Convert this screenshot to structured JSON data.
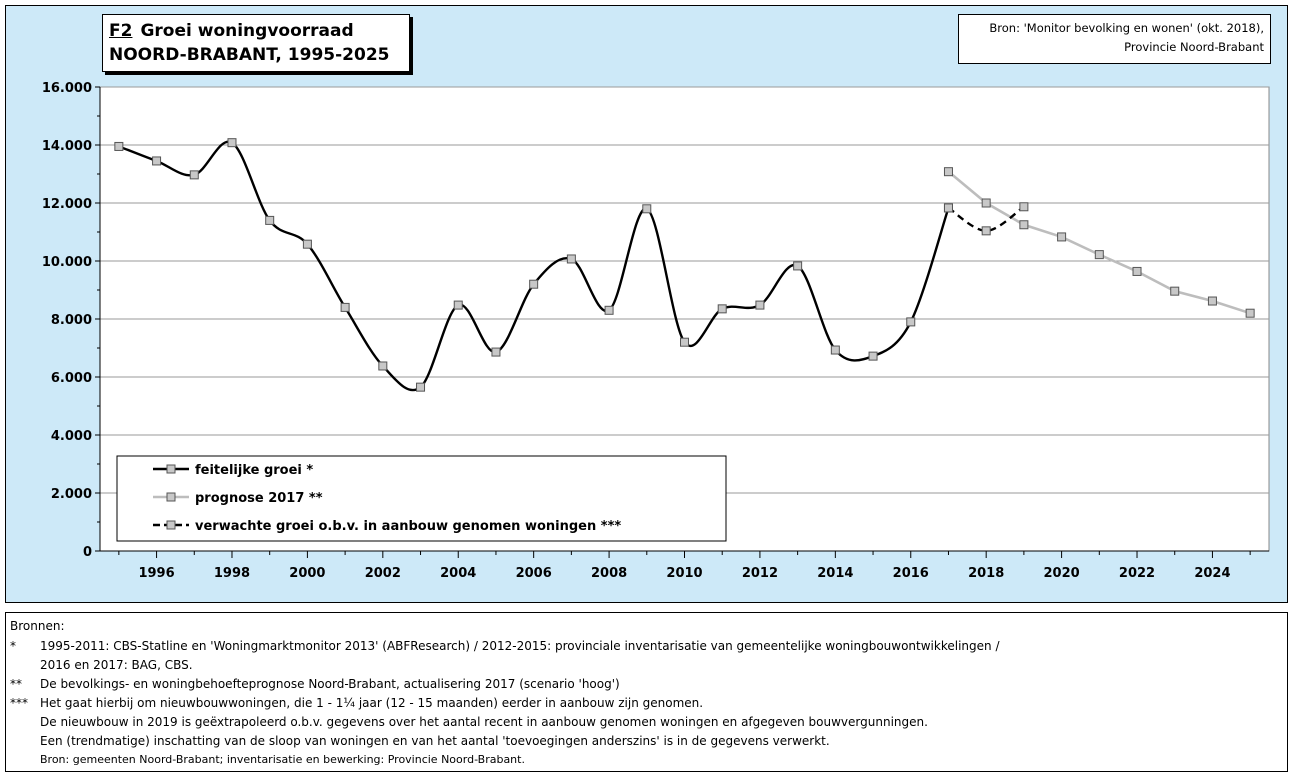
{
  "title": {
    "code": "F2",
    "line1": "Groei woningvoorraad",
    "line2": "NOORD-BRABANT, 1995-2025"
  },
  "source": {
    "line1": "Bron: 'Monitor bevolking en wonen' (okt. 2018),",
    "line2": "Provincie Noord-Brabant"
  },
  "colors": {
    "panel_background": "#cde9f8",
    "plot_background": "#ffffff",
    "actual": "#000000",
    "forecast": "#bdbdbd",
    "expected": "#000000",
    "marker_fill": "#c8c8c8"
  },
  "chart_data": {
    "type": "line",
    "ylim": [
      0,
      16000
    ],
    "xlim": [
      1994.5,
      2025.5
    ],
    "yticks": [
      "0",
      "2.000",
      "4.000",
      "6.000",
      "8.000",
      "10.000",
      "12.000",
      "14.000",
      "16.000"
    ],
    "xticks": [
      "1996",
      "1998",
      "2000",
      "2002",
      "2004",
      "2006",
      "2008",
      "2010",
      "2012",
      "2014",
      "2016",
      "2018",
      "2020",
      "2022",
      "2024"
    ],
    "grid": "horizontal",
    "legend_position": "bottom-left",
    "series": [
      {
        "name": "feitelijke groei *",
        "style": "solid-black-smooth",
        "x": [
          1995,
          1996,
          1997,
          1998,
          1999,
          2000,
          2001,
          2002,
          2003,
          2004,
          2005,
          2006,
          2007,
          2008,
          2009,
          2010,
          2011,
          2012,
          2013,
          2014,
          2015,
          2016,
          2017
        ],
        "values": [
          13950,
          13450,
          12970,
          14080,
          11400,
          10580,
          8400,
          6380,
          5650,
          8480,
          6860,
          9200,
          10070,
          8300,
          11800,
          7200,
          8350,
          8480,
          9830,
          6930,
          6720,
          7900,
          11830
        ]
      },
      {
        "name": "prognose 2017 **",
        "style": "solid-grey",
        "x": [
          2017,
          2018,
          2019,
          2020,
          2021,
          2022,
          2023,
          2024,
          2025
        ],
        "values": [
          13080,
          12000,
          11250,
          10830,
          10220,
          9640,
          8960,
          8620,
          8200
        ]
      },
      {
        "name": "verwachte groei o.b.v. in aanbouw genomen woningen ***",
        "style": "dashed-black-smooth",
        "x": [
          2017,
          2018,
          2019
        ],
        "values": [
          11830,
          11040,
          11870
        ]
      }
    ]
  },
  "notes": {
    "heading": "Bronnen:",
    "items": [
      {
        "mark": "*",
        "lines": [
          "1995-2011: CBS-Statline en 'Woningmarktmonitor 2013' (ABFResearch) / 2012-2015: provinciale inventarisatie van gemeentelijke woningbouwontwikkelingen /",
          "2016 en 2017: BAG, CBS."
        ]
      },
      {
        "mark": "**",
        "lines": [
          "De bevolkings- en woningbehoefteprognose Noord-Brabant, actualisering 2017 (scenario 'hoog')"
        ]
      },
      {
        "mark": "***",
        "lines": [
          "Het gaat hierbij om nieuwbouwwoningen, die 1 - 1¼ jaar (12 - 15 maanden) eerder in aanbouw zijn genomen.",
          "De nieuwbouw in 2019 is geëxtrapoleerd o.b.v. gegevens over het aantal recent in aanbouw genomen woningen en afgegeven bouwvergunningen.",
          "Een (trendmatige) inschatting van de sloop van woningen en van het aantal 'toevoegingen anderszins' is in de gegevens verwerkt."
        ]
      }
    ],
    "footer": "Bron: gemeenten Noord-Brabant; inventarisatie en bewerking: Provincie Noord-Brabant."
  }
}
